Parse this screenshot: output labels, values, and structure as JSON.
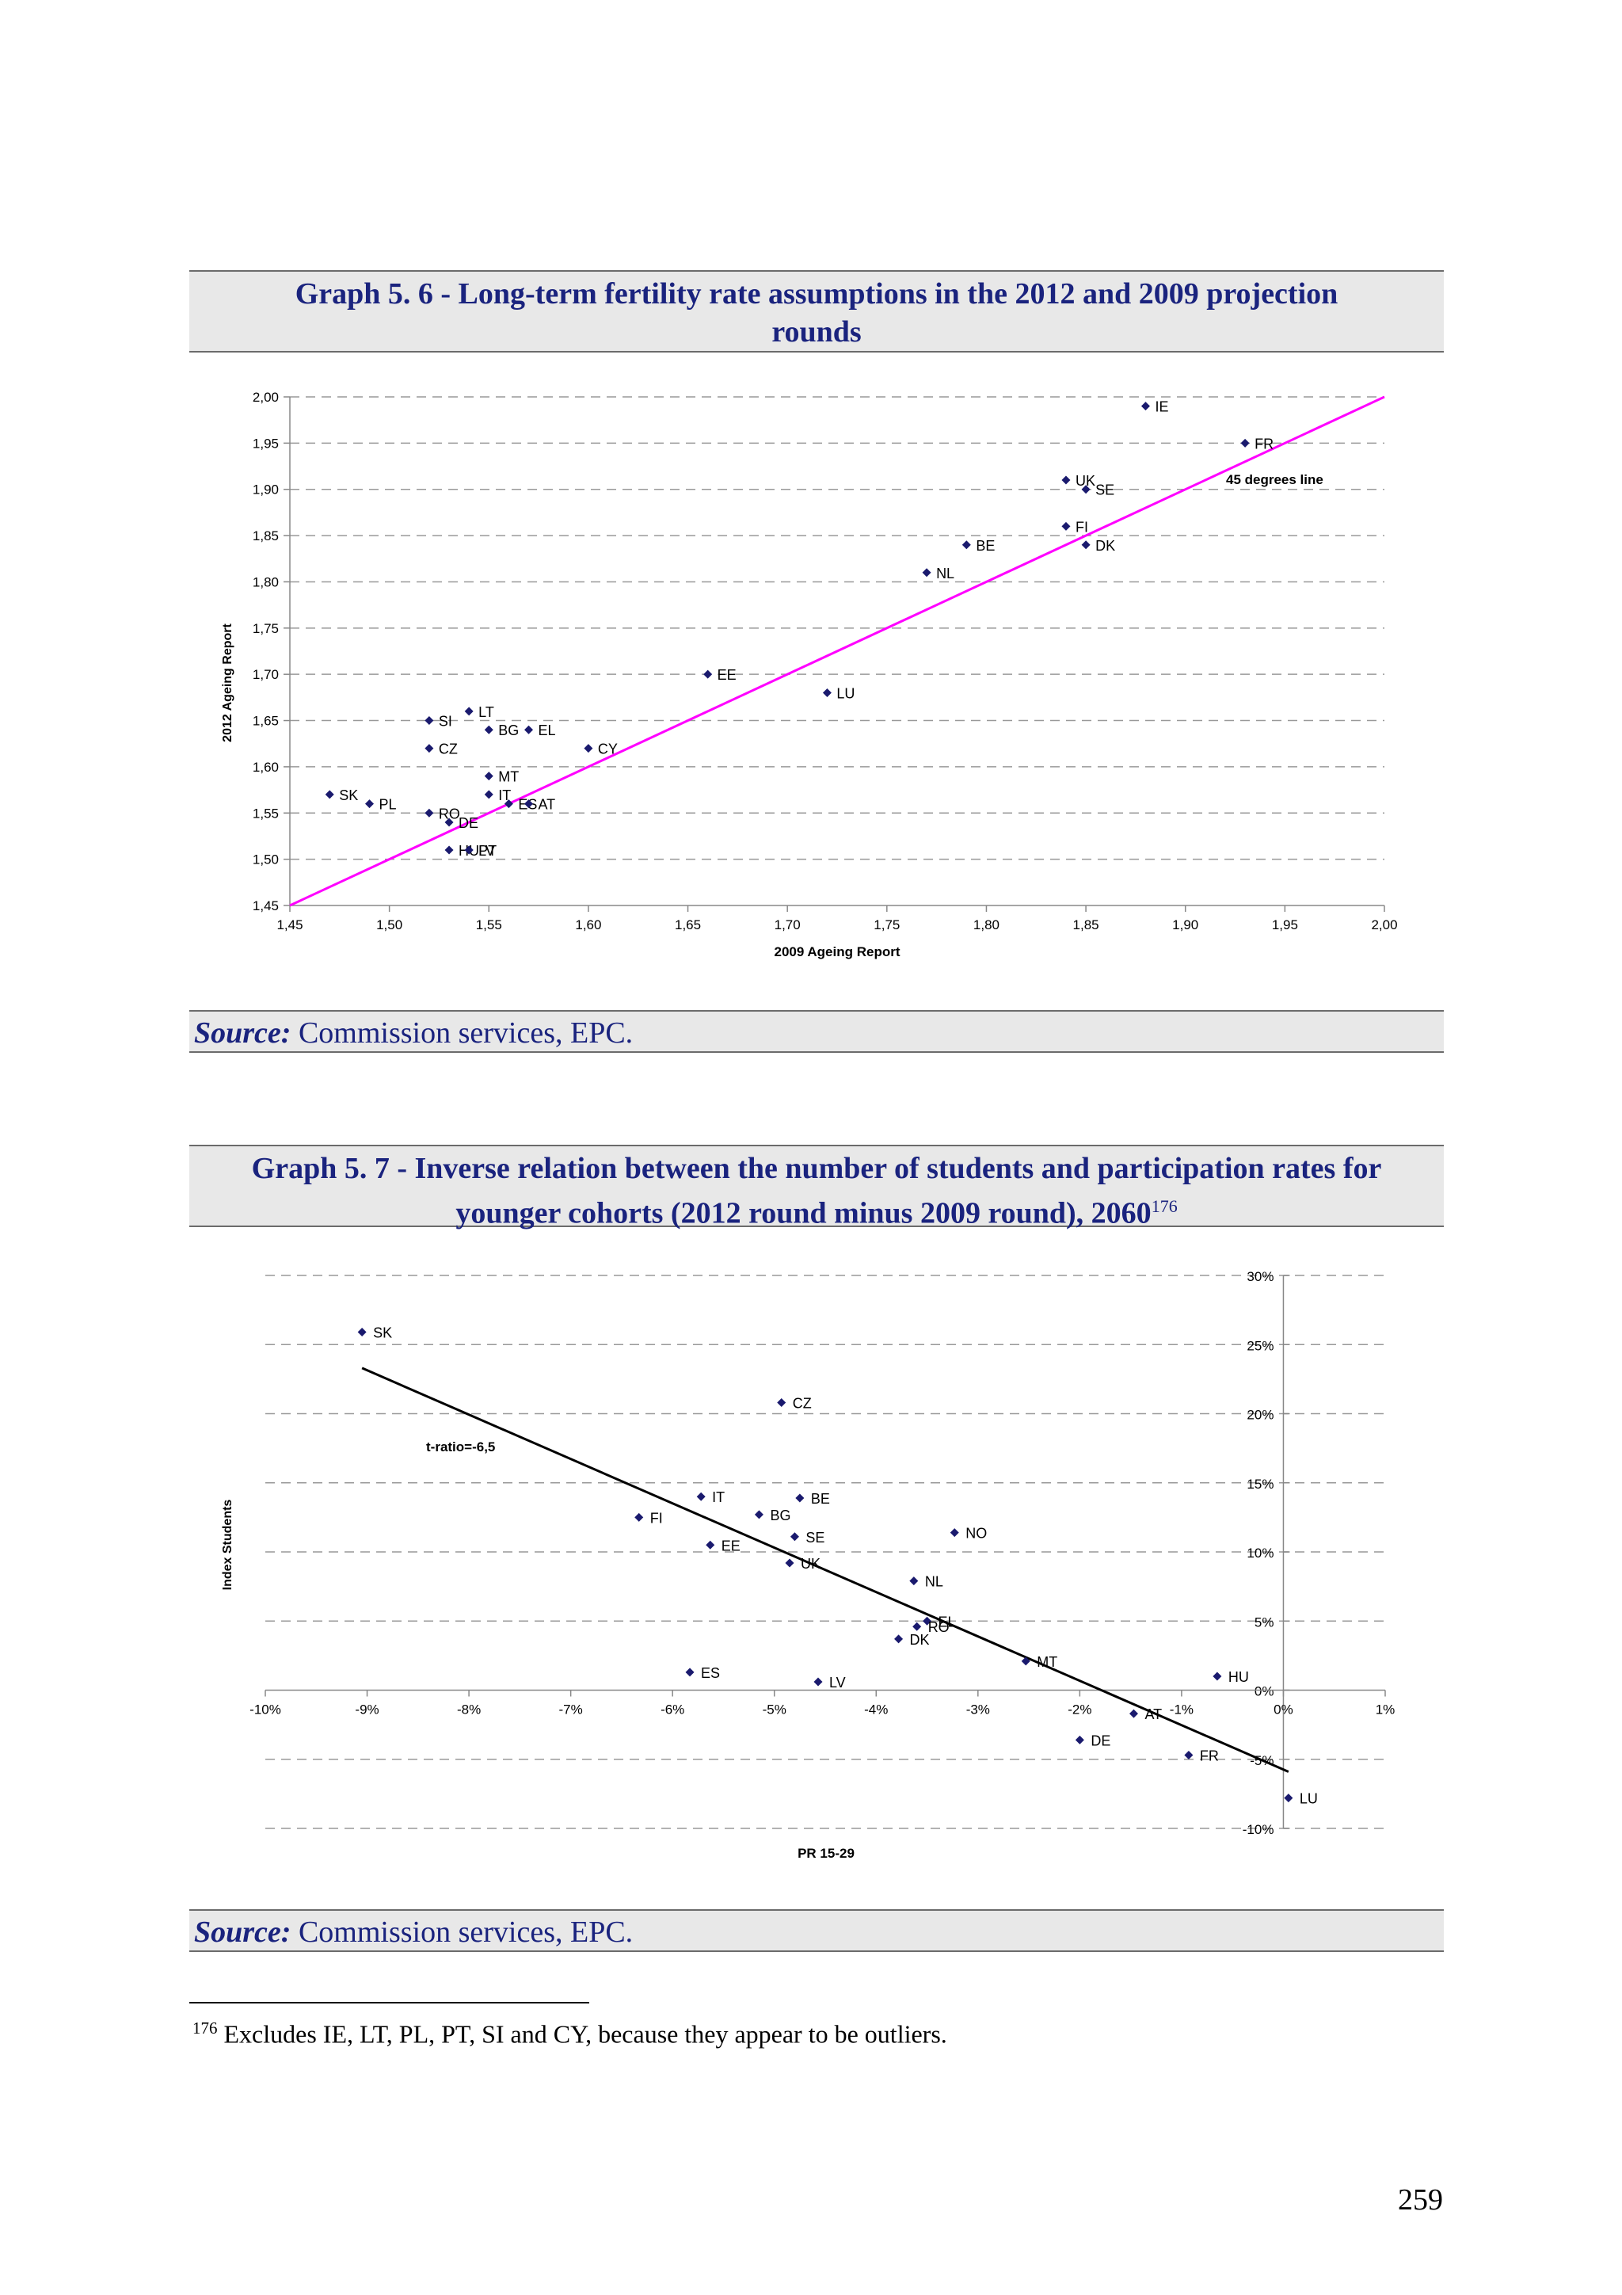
{
  "graph1": {
    "title_line1": "Graph 5. 6 - Long-term fertility rate assumptions in the 2012 and 2009 projection",
    "title_line2": "rounds",
    "source_label": "Source:",
    "source_text": " Commission services, EPC."
  },
  "graph2": {
    "title_line1": "Graph 5. 7 - Inverse relation between the number of students and participation rates for",
    "title_line2": "younger cohorts (2012 round minus 2009 round), 2060",
    "title_sup": "176",
    "source_label": "Source:",
    "source_text": " Commission services, EPC."
  },
  "footnote": {
    "number": "176",
    "text": " Excludes IE, LT, PL, PT, SI and CY, because they appear to be outliers."
  },
  "page_number": "259",
  "chart_data": [
    {
      "type": "scatter",
      "xlabel": "2009 Ageing Report",
      "ylabel": "2012 Ageing Report",
      "xlim": [
        1.45,
        2.0
      ],
      "ylim": [
        1.45,
        2.0
      ],
      "xticks": [
        "1,45",
        "1,50",
        "1,55",
        "1,60",
        "1,65",
        "1,70",
        "1,75",
        "1,80",
        "1,85",
        "1,90",
        "1,95",
        "2,00"
      ],
      "yticks": [
        "1,45",
        "1,50",
        "1,55",
        "1,60",
        "1,65",
        "1,70",
        "1,75",
        "1,80",
        "1,85",
        "1,90",
        "1,95",
        "2,00"
      ],
      "grid": "horizontal dashed",
      "marker_color": "#1a1a6e",
      "line_color": "#ff00ff",
      "line": {
        "label": "45 degrees line",
        "from": [
          1.45,
          1.45
        ],
        "to": [
          2.0,
          2.0
        ]
      },
      "points": [
        {
          "label": "IE",
          "x": 1.88,
          "y": 1.99
        },
        {
          "label": "FR",
          "x": 1.93,
          "y": 1.95
        },
        {
          "label": "UK",
          "x": 1.84,
          "y": 1.91
        },
        {
          "label": "SE",
          "x": 1.85,
          "y": 1.9
        },
        {
          "label": "FI",
          "x": 1.84,
          "y": 1.86
        },
        {
          "label": "BE",
          "x": 1.79,
          "y": 1.84
        },
        {
          "label": "DK",
          "x": 1.85,
          "y": 1.84
        },
        {
          "label": "NL",
          "x": 1.77,
          "y": 1.81
        },
        {
          "label": "EE",
          "x": 1.66,
          "y": 1.7
        },
        {
          "label": "LU",
          "x": 1.72,
          "y": 1.68
        },
        {
          "label": "LT",
          "x": 1.54,
          "y": 1.66
        },
        {
          "label": "SI",
          "x": 1.52,
          "y": 1.65
        },
        {
          "label": "BG",
          "x": 1.55,
          "y": 1.64
        },
        {
          "label": "EL",
          "x": 1.57,
          "y": 1.64
        },
        {
          "label": "CZ",
          "x": 1.52,
          "y": 1.62
        },
        {
          "label": "CY",
          "x": 1.6,
          "y": 1.62
        },
        {
          "label": "MT",
          "x": 1.55,
          "y": 1.59
        },
        {
          "label": "SK",
          "x": 1.47,
          "y": 1.57
        },
        {
          "label": "IT",
          "x": 1.55,
          "y": 1.57
        },
        {
          "label": "PL",
          "x": 1.49,
          "y": 1.56
        },
        {
          "label": "ES",
          "x": 1.56,
          "y": 1.56
        },
        {
          "label": "AT",
          "x": 1.57,
          "y": 1.56
        },
        {
          "label": "RO",
          "x": 1.52,
          "y": 1.55
        },
        {
          "label": "DE",
          "x": 1.53,
          "y": 1.54
        },
        {
          "label": "HU",
          "x": 1.53,
          "y": 1.51
        },
        {
          "label": "LV",
          "x": 1.54,
          "y": 1.51
        },
        {
          "label": "PT",
          "x": 1.54,
          "y": 1.51
        }
      ]
    },
    {
      "type": "scatter",
      "xlabel": "PR 15-29",
      "ylabel": "Index Students",
      "xlim": [
        -10,
        1
      ],
      "ylim": [
        -10,
        30
      ],
      "xticks": [
        "-10%",
        "-9%",
        "-8%",
        "-7%",
        "-6%",
        "-5%",
        "-4%",
        "-3%",
        "-2%",
        "-1%",
        "0%",
        "1%"
      ],
      "yticks": [
        "-10%",
        "-5%",
        "0%",
        "5%",
        "10%",
        "15%",
        "20%",
        "25%",
        "30%"
      ],
      "grid": "horizontal dashed",
      "marker_color": "#1a1a6e",
      "line_color": "#000000",
      "line": {
        "label": "t-ratio=-6,5",
        "from": [
          -9.05,
          23.3
        ],
        "to": [
          0.05,
          -5.9
        ]
      },
      "points": [
        {
          "label": "SK",
          "x": -9.05,
          "y": 25.9
        },
        {
          "label": "CZ",
          "x": -4.93,
          "y": 20.8
        },
        {
          "label": "IT",
          "x": -5.72,
          "y": 14.0
        },
        {
          "label": "BE",
          "x": -4.75,
          "y": 13.9
        },
        {
          "label": "BG",
          "x": -5.15,
          "y": 12.7
        },
        {
          "label": "FI",
          "x": -6.33,
          "y": 12.5
        },
        {
          "label": "SE",
          "x": -4.8,
          "y": 11.1
        },
        {
          "label": "NO",
          "x": -3.23,
          "y": 11.4
        },
        {
          "label": "EE",
          "x": -5.63,
          "y": 10.5
        },
        {
          "label": "UK",
          "x": -4.85,
          "y": 9.2
        },
        {
          "label": "NL",
          "x": -3.63,
          "y": 7.9
        },
        {
          "label": "EL",
          "x": -3.5,
          "y": 5.0
        },
        {
          "label": "RO",
          "x": -3.6,
          "y": 4.6
        },
        {
          "label": "DK",
          "x": -3.78,
          "y": 3.7
        },
        {
          "label": "MT",
          "x": -2.53,
          "y": 2.1
        },
        {
          "label": "ES",
          "x": -5.83,
          "y": 1.3
        },
        {
          "label": "LV",
          "x": -4.57,
          "y": 0.6
        },
        {
          "label": "HU",
          "x": -0.65,
          "y": 1.0
        },
        {
          "label": "AT",
          "x": -1.47,
          "y": -1.7
        },
        {
          "label": "DE",
          "x": -2.0,
          "y": -3.6
        },
        {
          "label": "FR",
          "x": -0.93,
          "y": -4.7
        },
        {
          "label": "LU",
          "x": 0.05,
          "y": -7.8
        }
      ]
    }
  ]
}
